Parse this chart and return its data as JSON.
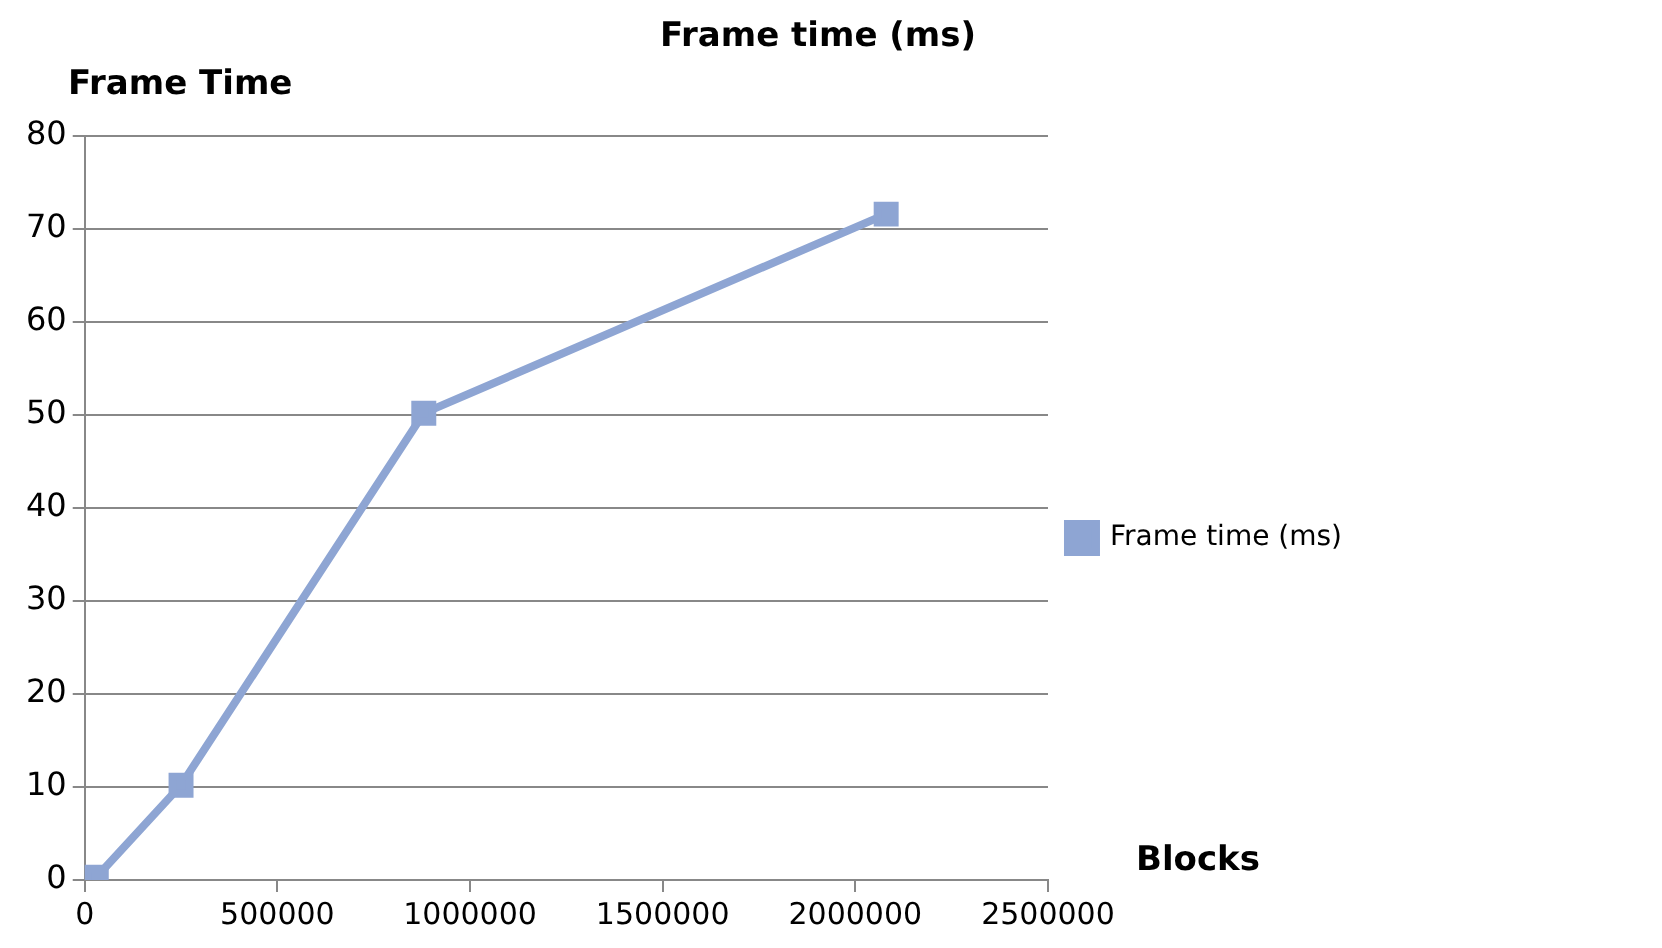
{
  "chart_data": {
    "type": "line",
    "title": "Frame time (ms)",
    "xlabel": "Blocks",
    "ylabel": "Frame Time",
    "x": [
      30000,
      250000,
      880000,
      2080000
    ],
    "series": [
      {
        "name": "Frame time (ms)",
        "color": "#8ea5d3",
        "values": [
          0.3,
          10.2,
          50.2,
          71.6
        ]
      }
    ],
    "xlim": [
      0,
      2500000
    ],
    "xticks": [
      0,
      500000,
      1000000,
      1500000,
      2000000,
      2500000
    ],
    "ylim": [
      0,
      80
    ],
    "yticks": [
      0,
      10,
      20,
      30,
      40,
      50,
      60,
      70,
      80
    ],
    "grid": "y",
    "legend": "right",
    "marker": "square",
    "line_style": "solid"
  }
}
